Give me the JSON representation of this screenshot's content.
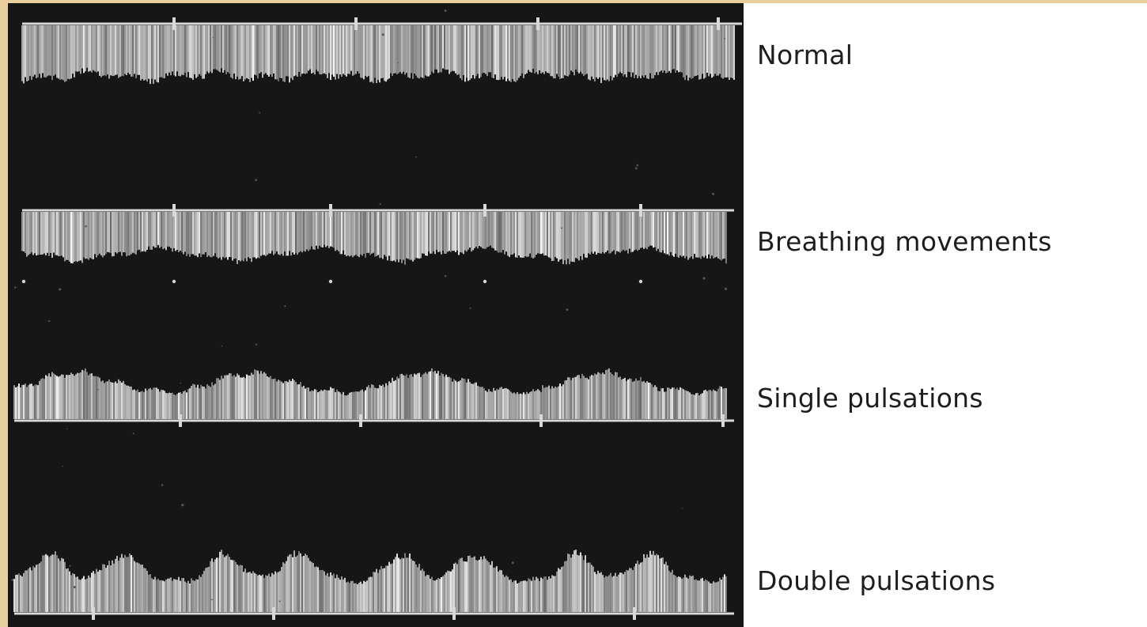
{
  "figure": {
    "colors": {
      "border": "#e9cf9c",
      "label_background": "#ffffff",
      "panel_background": "#161616",
      "spectrum": "#dcdcdc",
      "baseline": "#d8d8d8",
      "label_text": "#1d1d1d"
    },
    "traces": [
      {
        "label": "Normal",
        "waveform": "steady",
        "baseline_position": "above"
      },
      {
        "label": "Breathing movements",
        "waveform": "respiratory-modulated",
        "baseline_position": "above"
      },
      {
        "label": "Single pulsations",
        "waveform": "single-peak-per-cycle",
        "baseline_position": "below"
      },
      {
        "label": "Double pulsations",
        "waveform": "double-peak-per-cycle",
        "baseline_position": "below"
      }
    ]
  }
}
